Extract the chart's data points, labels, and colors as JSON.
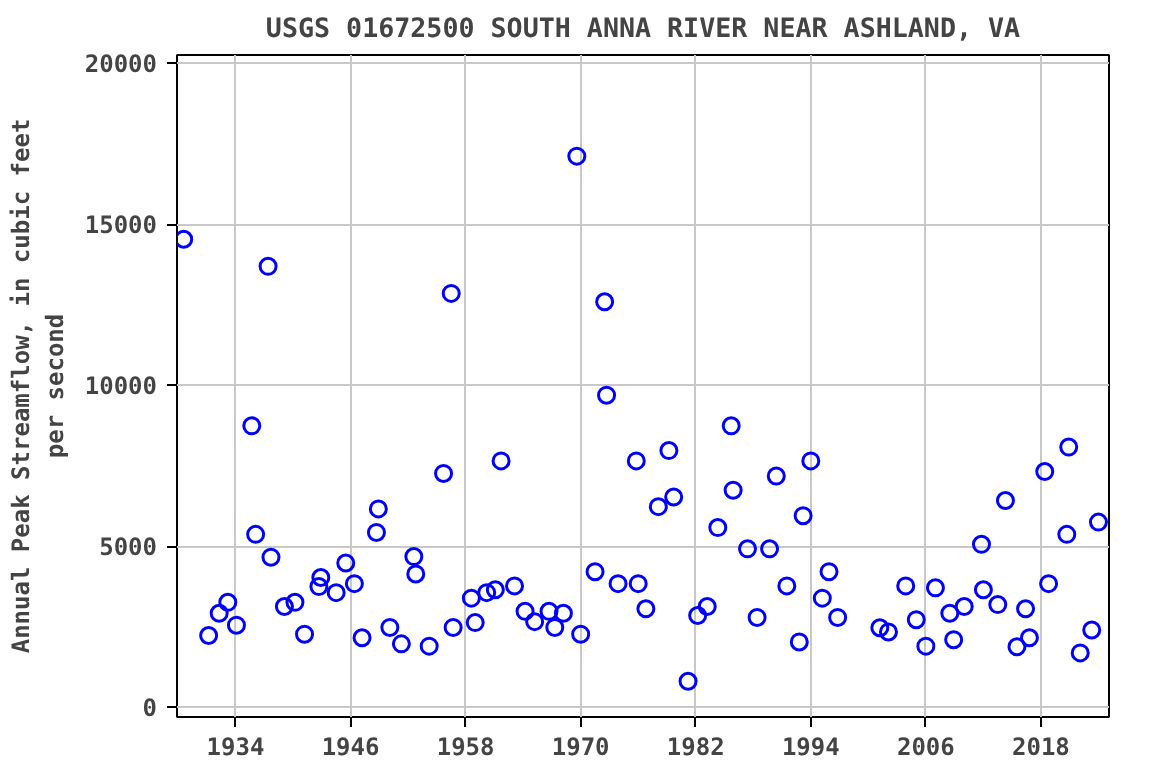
{
  "chart_data": {
    "type": "scatter",
    "title": "USGS 01672500 SOUTH ANNA RIVER NEAR ASHLAND, VA",
    "ylabel": "Annual Peak Streamflow, in cubic feet per second",
    "x": [
      1928.6,
      1931.2,
      1932.3,
      1933.2,
      1934.1,
      1935.7,
      1936.1,
      1937.4,
      1937.7,
      1939.1,
      1940.2,
      1941.2,
      1942.7,
      1942.9,
      1944.5,
      1945.5,
      1946.4,
      1947.2,
      1948.7,
      1948.9,
      1950.1,
      1951.3,
      1952.6,
      1952.8,
      1954.2,
      1955.7,
      1956.5,
      1956.7,
      1958.6,
      1959,
      1960.2,
      1961.1,
      1961.7,
      1963.1,
      1964.2,
      1965.2,
      1966.7,
      1967.3,
      1968.2,
      1969.6,
      1970,
      1971.5,
      1972.5,
      1972.7,
      1973.9,
      1975.8,
      1976,
      1976.8,
      1978.1,
      1979.2,
      1979.7,
      1981.2,
      1982.2,
      1983.2,
      1984.3,
      1985.7,
      1985.9,
      1987.4,
      1988.4,
      1989.7,
      1990.4,
      1991.5,
      1992.8,
      1993.2,
      1994,
      1995.2,
      1995.9,
      1996.8,
      2001.2,
      2002.1,
      2003.9,
      2005,
      2006,
      2007,
      2008.5,
      2008.9,
      2010,
      2011.8,
      2012,
      2013.5,
      2014.3,
      2015.5,
      2016.4,
      2016.8,
      2018.4,
      2018.8,
      2020.7,
      2020.9,
      2022.1,
      2023.3,
      2024
    ],
    "series": [
      {
        "color": "#0000ff",
        "values": [
          14530,
          2230,
          2920,
          3260,
          2550,
          8740,
          5370,
          13690,
          4660,
          3130,
          3260,
          2270,
          3750,
          4030,
          3560,
          4480,
          3840,
          2160,
          5430,
          6160,
          2480,
          1970,
          4680,
          4140,
          1900,
          7260,
          12850,
          2480,
          3390,
          2630,
          3560,
          3650,
          7650,
          3770,
          2980,
          2660,
          2980,
          2480,
          2920,
          17110,
          2270,
          4210,
          12590,
          9690,
          3840,
          7650,
          3840,
          3060,
          6230,
          7970,
          6530,
          810,
          2850,
          3130,
          5580,
          8740,
          6740,
          4920,
          2790,
          4920,
          7180,
          3770,
          2030,
          5950,
          7650,
          3390,
          4210,
          2790,
          2470,
          2340,
          3770,
          2720,
          1900,
          3710,
          2920,
          2100,
          3130,
          5060,
          3650,
          3190,
          6420,
          1880,
          3060,
          2160,
          7320,
          3840,
          5370,
          8080,
          1690,
          2400,
          5750
        ]
      }
    ],
    "xlim": [
      1927.9,
      2025.1
    ],
    "ylim": [
      -300,
      20250
    ],
    "xticks": [
      1934,
      1946,
      1958,
      1970,
      1982,
      1994,
      2006,
      2018
    ],
    "yticks": [
      0,
      5000,
      10000,
      15000,
      20000
    ],
    "grid": true,
    "marker": "circle"
  }
}
